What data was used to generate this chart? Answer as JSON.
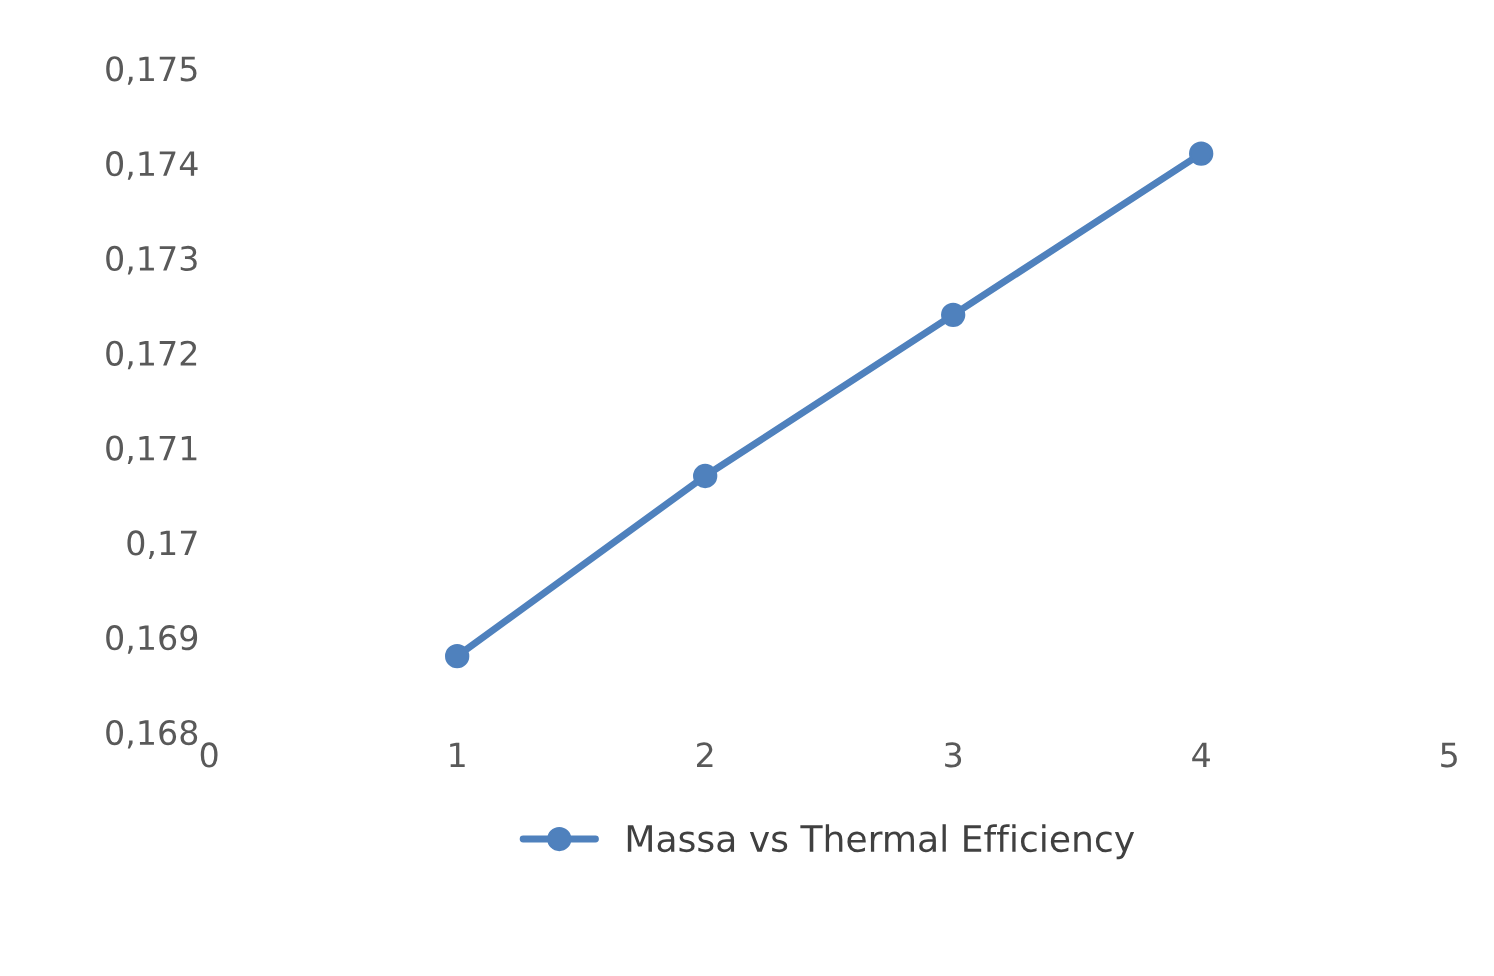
{
  "chart_data": {
    "type": "line",
    "x": [
      1,
      2,
      3,
      4
    ],
    "series": [
      {
        "name": "Massa vs Thermal Efficiency",
        "color": "#4f81bd",
        "values": [
          0.1688,
          0.1707,
          0.1724,
          0.1741
        ]
      }
    ],
    "xlim": [
      0,
      5
    ],
    "xticks": [
      0,
      1,
      2,
      3,
      4,
      5
    ],
    "ylim": [
      0.168,
      0.175
    ],
    "yticks": [
      {
        "value": 0.168,
        "label": "0,168"
      },
      {
        "value": 0.169,
        "label": "0,169"
      },
      {
        "value": 0.17,
        "label": "0,17"
      },
      {
        "value": 0.171,
        "label": "0,171"
      },
      {
        "value": 0.172,
        "label": "0,172"
      },
      {
        "value": 0.173,
        "label": "0,173"
      },
      {
        "value": 0.174,
        "label": "0,174"
      },
      {
        "value": 0.175,
        "label": "0,175"
      }
    ],
    "grid": false,
    "legend": "bottom",
    "marker": "circle",
    "line_style": "solid"
  }
}
